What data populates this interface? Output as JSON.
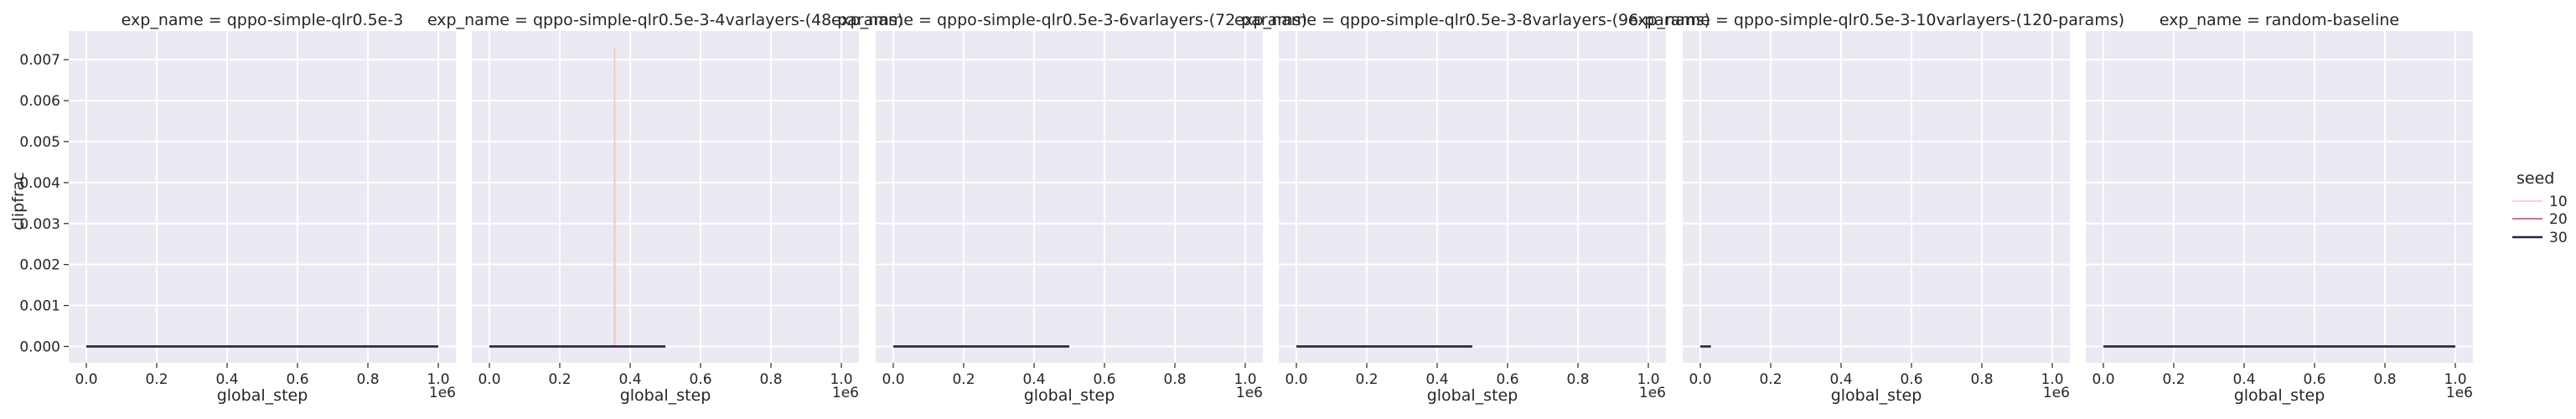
{
  "chart_data": {
    "type": "line",
    "ylabel": "clipfrac",
    "xlabel": "global_step",
    "x_multiplier_label": "1e6",
    "xlim": [
      -0.05,
      1.05
    ],
    "ylim": [
      -0.0004,
      0.0077
    ],
    "x_ticks": [
      0.0,
      0.2,
      0.4,
      0.6,
      0.8,
      1.0
    ],
    "x_tick_labels": [
      "0.0",
      "0.2",
      "0.4",
      "0.6",
      "0.8",
      "1.0"
    ],
    "y_ticks": [
      0.0,
      0.001,
      0.002,
      0.003,
      0.004,
      0.005,
      0.006,
      0.007
    ],
    "y_tick_labels": [
      "0.000",
      "0.001",
      "0.002",
      "0.003",
      "0.004",
      "0.005",
      "0.006",
      "0.007"
    ],
    "grid": true,
    "legend": {
      "title": "seed",
      "placement": "right",
      "entries": [
        {
          "label": "10",
          "color": "#f0c9c0"
        },
        {
          "label": "20",
          "color": "#b04b5e"
        },
        {
          "label": "30",
          "color": "#2d1e3e"
        }
      ]
    },
    "panels": [
      {
        "title": "exp_name = qppo-simple-qlr0.5e-3",
        "series": [
          {
            "seed": "10",
            "points": [
              [
                0.0,
                0.0
              ],
              [
                1.0,
                0.0
              ]
            ]
          },
          {
            "seed": "20",
            "points": [
              [
                0.0,
                0.0
              ],
              [
                1.0,
                0.0
              ]
            ]
          },
          {
            "seed": "30",
            "points": [
              [
                0.0,
                0.0
              ],
              [
                1.0,
                0.0
              ]
            ]
          }
        ]
      },
      {
        "title": "exp_name = qppo-simple-qlr0.5e-3-4varlayers-(48-params)",
        "series": [
          {
            "seed": "10",
            "points": [
              [
                0.0,
                0.0
              ],
              [
                0.355,
                0.0
              ],
              [
                0.356,
                0.0073
              ],
              [
                0.357,
                0.0
              ],
              [
                0.5,
                0.0
              ]
            ]
          },
          {
            "seed": "20",
            "points": [
              [
                0.0,
                0.0
              ],
              [
                0.5,
                0.0
              ]
            ]
          },
          {
            "seed": "30",
            "points": [
              [
                0.0,
                0.0
              ],
              [
                0.5,
                0.0
              ]
            ]
          }
        ]
      },
      {
        "title": "exp_name = qppo-simple-qlr0.5e-3-6varlayers-(72-params)",
        "series": [
          {
            "seed": "10",
            "points": [
              [
                0.0,
                0.0
              ],
              [
                0.5,
                0.0
              ]
            ]
          },
          {
            "seed": "20",
            "points": [
              [
                0.0,
                0.0
              ],
              [
                0.5,
                0.0
              ]
            ]
          },
          {
            "seed": "30",
            "points": [
              [
                0.0,
                0.0
              ],
              [
                0.5,
                0.0
              ]
            ]
          }
        ]
      },
      {
        "title": "exp_name = qppo-simple-qlr0.5e-3-8varlayers-(96-params)",
        "series": [
          {
            "seed": "10",
            "points": [
              [
                0.0,
                0.0
              ],
              [
                0.5,
                0.0
              ]
            ]
          },
          {
            "seed": "20",
            "points": [
              [
                0.0,
                0.0
              ],
              [
                0.5,
                0.0
              ]
            ]
          },
          {
            "seed": "30",
            "points": [
              [
                0.0,
                0.0
              ],
              [
                0.5,
                0.0
              ]
            ]
          }
        ]
      },
      {
        "title": "exp_name = qppo-simple-qlr0.5e-3-10varlayers-(120-params)",
        "series": [
          {
            "seed": "10",
            "points": [
              [
                0.0,
                0.0
              ],
              [
                0.03,
                0.0
              ]
            ]
          },
          {
            "seed": "20",
            "points": [
              [
                0.0,
                0.0
              ],
              [
                0.03,
                0.0
              ]
            ]
          },
          {
            "seed": "30",
            "points": [
              [
                0.0,
                0.0
              ],
              [
                0.03,
                0.0
              ]
            ]
          }
        ]
      },
      {
        "title": "exp_name = random-baseline",
        "series": [
          {
            "seed": "10",
            "points": [
              [
                0.0,
                0.0
              ],
              [
                1.0,
                0.0
              ]
            ]
          },
          {
            "seed": "20",
            "points": [
              [
                0.0,
                0.0
              ],
              [
                1.0,
                0.0
              ]
            ]
          },
          {
            "seed": "30",
            "points": [
              [
                0.0,
                0.0
              ],
              [
                1.0,
                0.0
              ]
            ]
          }
        ]
      }
    ]
  }
}
